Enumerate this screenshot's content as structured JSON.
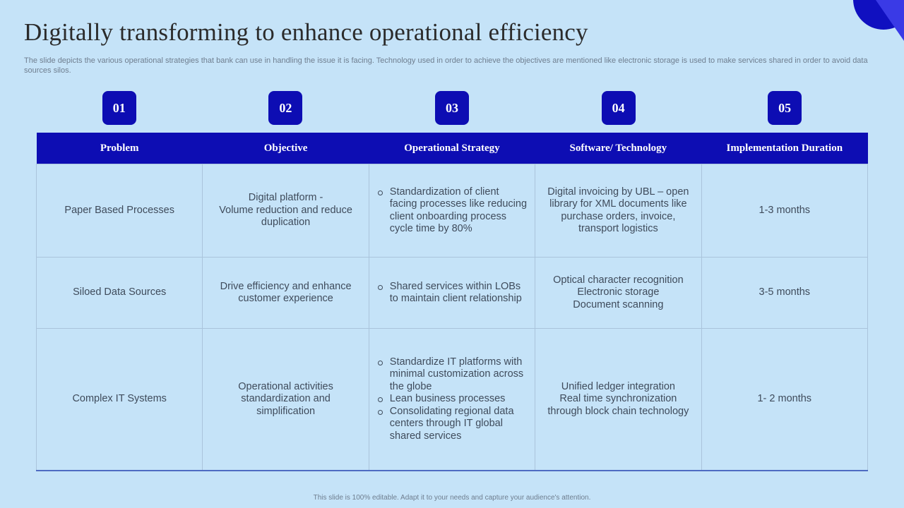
{
  "title": "Digitally transforming to enhance operational efficiency",
  "subtitle": "The slide depicts the various operational strategies that bank can use in handling the issue it is facing. Technology used in order to achieve the objectives are mentioned like  electronic storage is used to make services shared in order to  avoid data sources silos.",
  "badges": [
    "01",
    "02",
    "03",
    "04",
    "05"
  ],
  "headers": [
    "Problem",
    "Objective",
    "Operational Strategy",
    "Software/ Technology",
    "Implementation Duration"
  ],
  "rows": [
    {
      "problem": "Paper Based Processes",
      "objective": [
        "Digital platform -",
        "Volume reduction and reduce duplication"
      ],
      "strategy": [
        "Standardization of client facing processes like reducing client onboarding process cycle time by 80%"
      ],
      "technology": [
        "Digital invoicing by UBL  – open library for XML documents like purchase orders, invoice, transport logistics"
      ],
      "duration": "1-3 months"
    },
    {
      "problem": "Siloed Data Sources",
      "objective": [
        "Drive efficiency and enhance customer experience"
      ],
      "strategy": [
        "Shared services within LOBs to maintain client relationship"
      ],
      "technology": [
        "Optical character recognition",
        "Electronic storage",
        "Document scanning"
      ],
      "duration": "3-5 months"
    },
    {
      "problem": "Complex IT Systems",
      "objective": [
        "Operational activities standardization and simplification"
      ],
      "strategy": [
        "Standardize IT platforms with minimal customization across the globe",
        "Lean business processes",
        "Consolidating regional data centers through IT global shared services"
      ],
      "technology": [
        "Unified ledger integration",
        "Real time synchronization through block chain technology"
      ],
      "duration": "1- 2 months"
    }
  ],
  "footer": "This slide is 100% editable.  Adapt it to your needs and capture your audience's attention.",
  "colors": {
    "background": "#c5e3f8",
    "accent": "#0d0db3",
    "title": "#2b2b2b"
  }
}
